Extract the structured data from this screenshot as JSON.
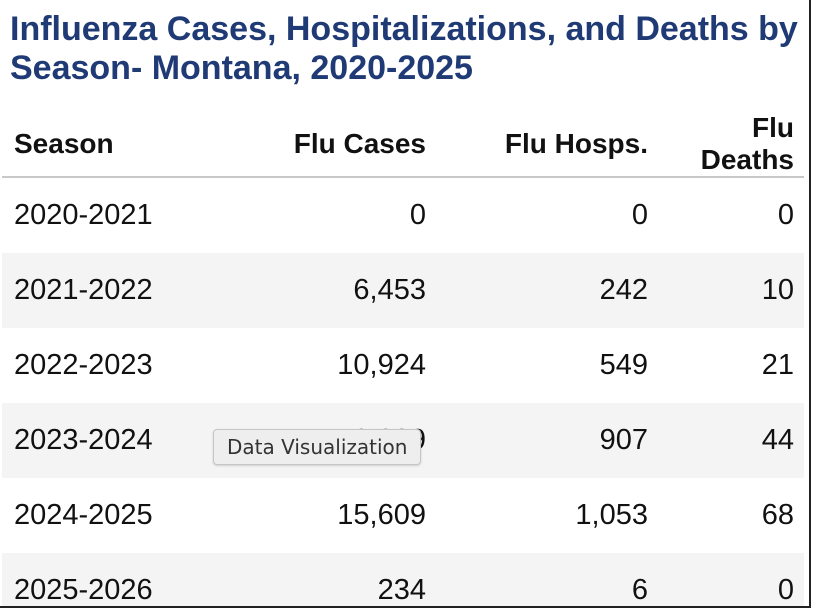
{
  "title": "Influenza Cases, Hospitalizations, and Deaths by Season- Montana, 2020-2025",
  "table": {
    "headers": [
      "Season",
      "Flu Cases",
      "Flu Hosps.",
      "Flu Deaths"
    ],
    "rows": [
      [
        "2020-2021",
        "0",
        "0",
        "0"
      ],
      [
        "2021-2022",
        "6,453",
        "242",
        "10"
      ],
      [
        "2022-2023",
        "10,924",
        "549",
        "21"
      ],
      [
        "2023-2024",
        "19,909",
        "907",
        "44"
      ],
      [
        "2024-2025",
        "15,609",
        "1,053",
        "68"
      ],
      [
        "2025-2026",
        "234",
        "6",
        "0"
      ]
    ]
  },
  "tooltip": "Data Visualization",
  "colors": {
    "title": "#1f3a75",
    "stripe": "#f4f4f4",
    "header_rule": "#c8c8c8"
  }
}
